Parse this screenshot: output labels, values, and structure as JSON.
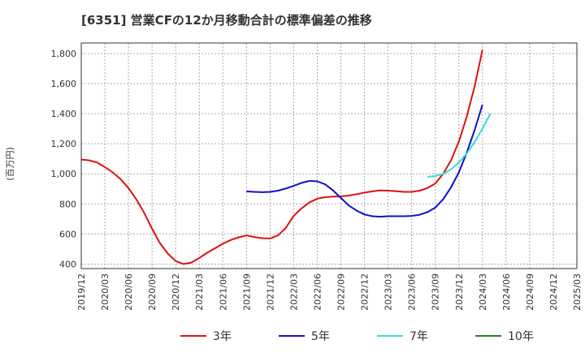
{
  "chart_data": {
    "type": "line",
    "title": "[6351]  営業CFの12か月移動合計の標準偏差の推移",
    "ylabel": "(百万円)",
    "xlabel": "",
    "ylim": [
      370,
      1870
    ],
    "yticks": [
      400,
      600,
      800,
      1000,
      1200,
      1400,
      1600,
      1800
    ],
    "ytick_labels": [
      "400",
      "600",
      "800",
      "1,000",
      "1,200",
      "1,400",
      "1,600",
      "1,800"
    ],
    "xticks": [
      "2019/12",
      "2020/03",
      "2020/06",
      "2020/09",
      "2020/12",
      "2021/03",
      "2021/06",
      "2021/09",
      "2021/12",
      "2022/03",
      "2022/06",
      "2022/09",
      "2022/12",
      "2023/03",
      "2023/06",
      "2023/09",
      "2023/12",
      "2024/03",
      "2024/06",
      "2024/09",
      "2024/12",
      "2025/03"
    ],
    "grid": true,
    "legend_position": "bottom",
    "series": [
      {
        "name": "3年",
        "color": "#dd1111",
        "start": "2019/12",
        "values": [
          1095,
          1090,
          1075,
          1045,
          1010,
          965,
          905,
          830,
          740,
          635,
          540,
          470,
          420,
          400,
          410,
          440,
          475,
          505,
          535,
          560,
          578,
          590,
          580,
          572,
          570,
          590,
          640,
          720,
          770,
          810,
          835,
          845,
          848,
          850,
          855,
          865,
          875,
          883,
          890,
          888,
          885,
          880,
          880,
          888,
          905,
          935,
          1000,
          1090,
          1215,
          1380,
          1580,
          1825
        ]
      },
      {
        "name": "5年",
        "color": "#1111cc",
        "start": "2021/09",
        "values": [
          883,
          880,
          878,
          880,
          888,
          902,
          920,
          940,
          953,
          950,
          930,
          890,
          840,
          790,
          755,
          730,
          718,
          715,
          718,
          718,
          718,
          720,
          728,
          745,
          775,
          830,
          910,
          1010,
          1140,
          1290,
          1460
        ]
      },
      {
        "name": "7年",
        "color": "#33dddd",
        "start": "2023/08",
        "values": [
          980,
          985,
          1000,
          1030,
          1075,
          1135,
          1210,
          1300,
          1400
        ]
      },
      {
        "name": "10年",
        "color": "#228822",
        "start": "",
        "values": []
      }
    ]
  }
}
